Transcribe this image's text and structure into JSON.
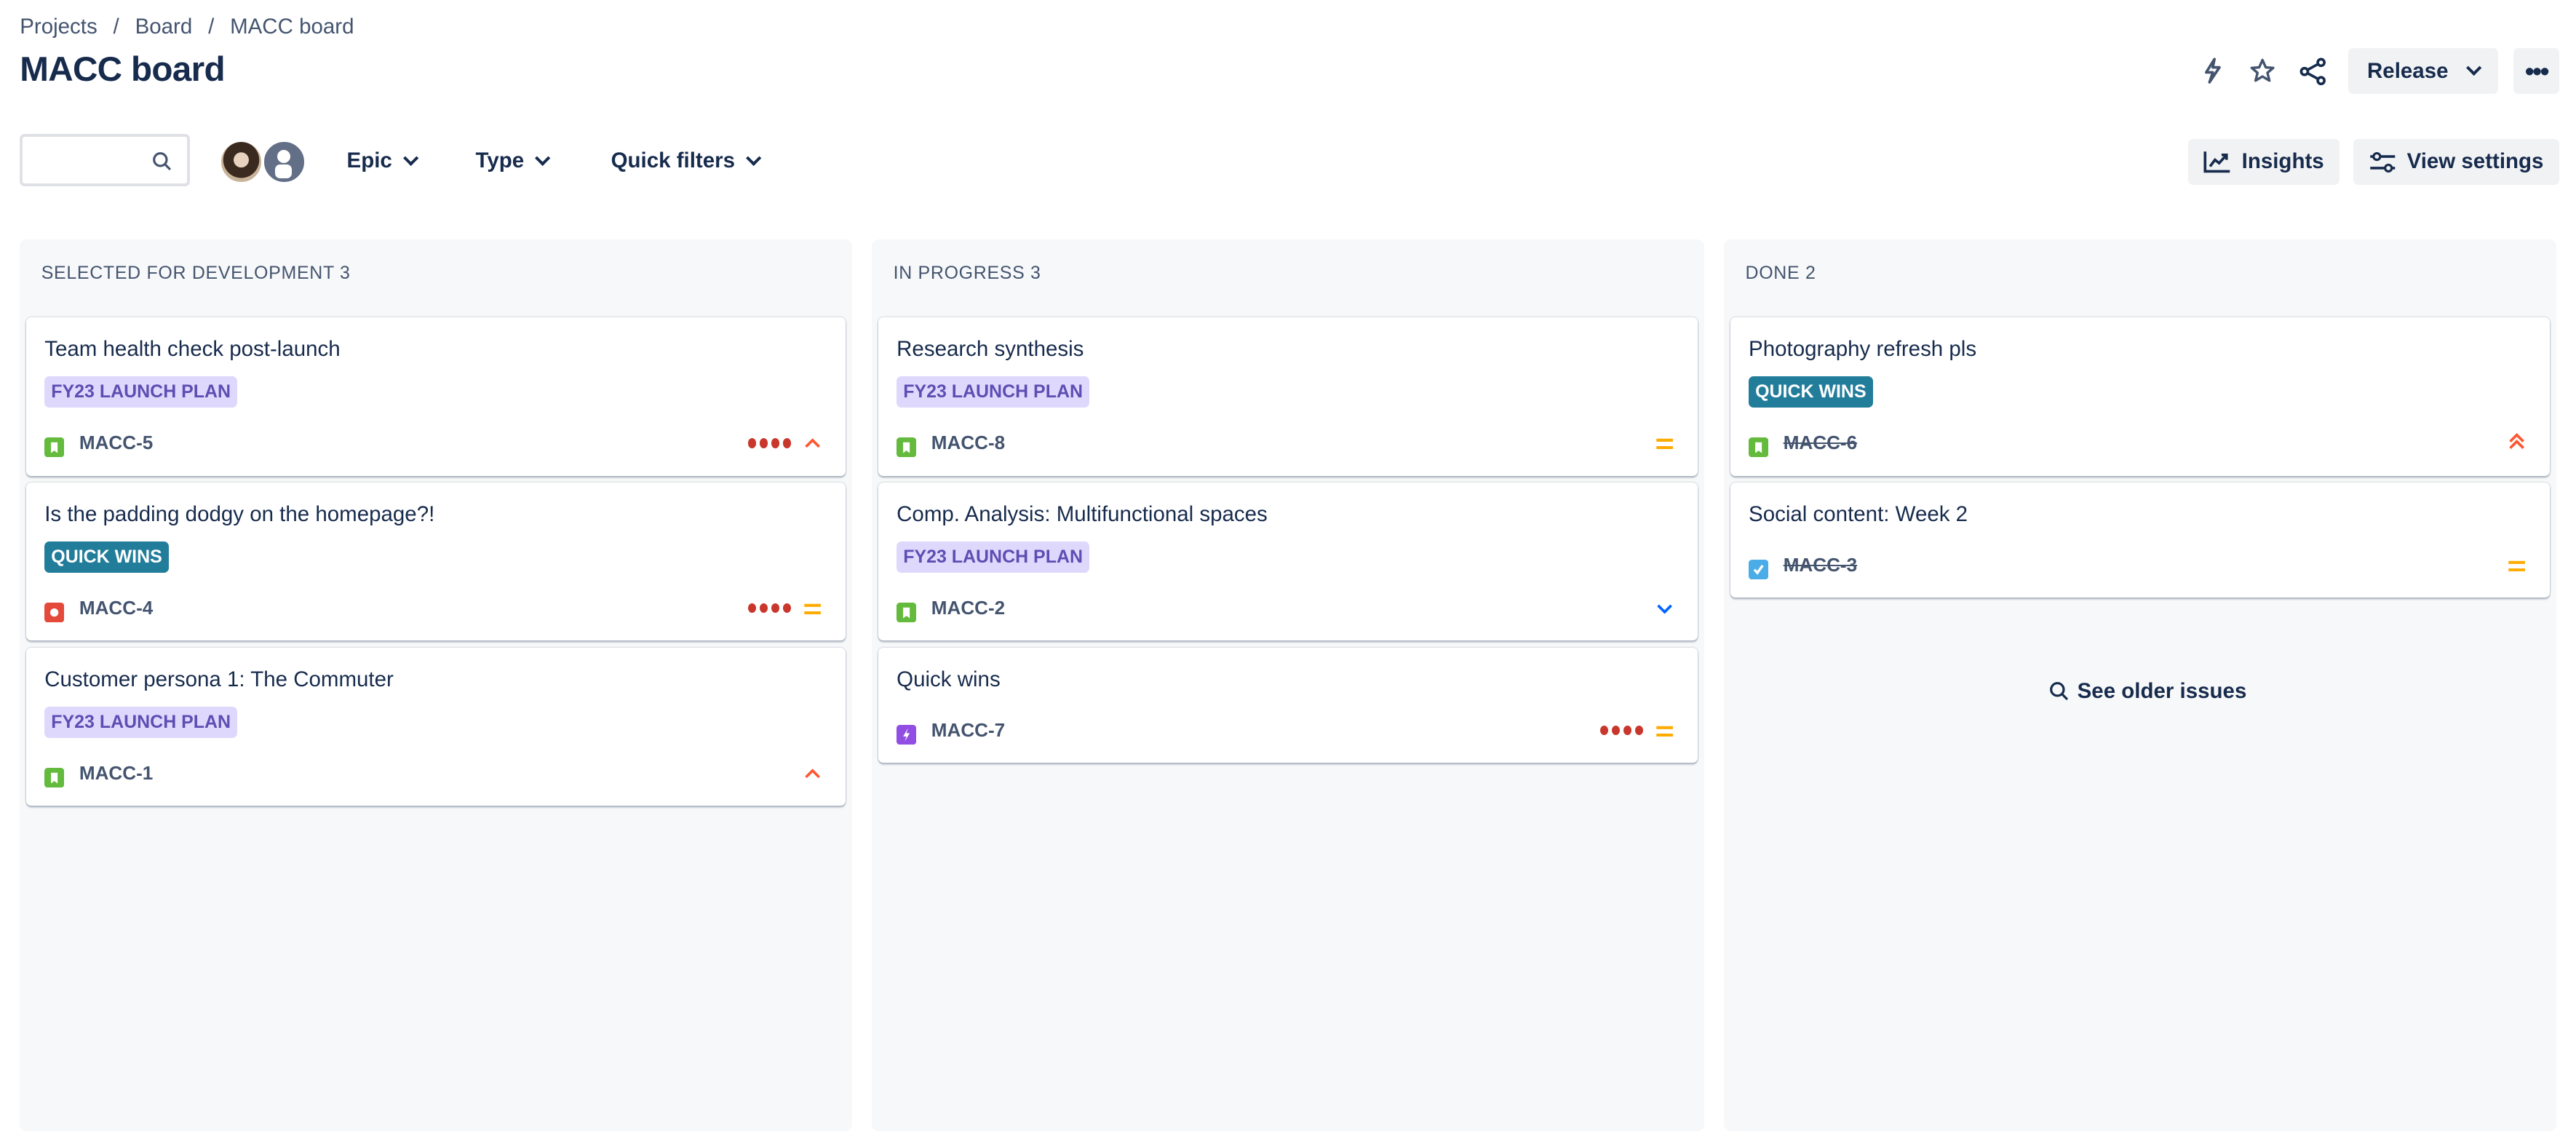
{
  "breadcrumbs": [
    "Projects",
    "Board",
    "MACC board"
  ],
  "breadcrumb_separator": "/",
  "title": "MACC board",
  "header_actions": {
    "automation_icon": "lightning-icon",
    "star_icon": "star-icon",
    "share_icon": "share-icon",
    "release_label": "Release",
    "more_icon": "more-horizontal-icon"
  },
  "toolbar": {
    "search_value": "",
    "search_placeholder": "",
    "filters": [
      "Epic",
      "Type",
      "Quick filters"
    ],
    "insights_label": "Insights",
    "view_settings_label": "View settings"
  },
  "columns": [
    {
      "title": "SELECTED FOR DEVELOPMENT 3",
      "cards": [
        {
          "title": "Team health check post-launch",
          "label": "FY23 LAUNCH PLAN",
          "label_style": "purple",
          "key": "MACC-5",
          "type": "story",
          "done": false,
          "dots": true,
          "priority": "high"
        },
        {
          "title": "Is the padding dodgy on the homepage?!",
          "label": "QUICK WINS",
          "label_style": "teal",
          "key": "MACC-4",
          "type": "bug",
          "done": false,
          "dots": true,
          "priority": "medium"
        },
        {
          "title": "Customer persona 1: The Commuter",
          "label": "FY23 LAUNCH PLAN",
          "label_style": "purple",
          "key": "MACC-1",
          "type": "story",
          "done": false,
          "dots": false,
          "priority": "high"
        }
      ]
    },
    {
      "title": "IN PROGRESS 3",
      "cards": [
        {
          "title": "Research synthesis",
          "label": "FY23 LAUNCH PLAN",
          "label_style": "purple",
          "key": "MACC-8",
          "type": "story",
          "done": false,
          "dots": false,
          "priority": "medium"
        },
        {
          "title": "Comp. Analysis: Multifunctional spaces",
          "label": "FY23 LAUNCH PLAN",
          "label_style": "purple",
          "key": "MACC-2",
          "type": "story",
          "done": false,
          "dots": false,
          "priority": "low"
        },
        {
          "title": "Quick wins",
          "label": "",
          "label_style": "",
          "key": "MACC-7",
          "type": "epic",
          "done": false,
          "dots": true,
          "priority": "medium"
        }
      ]
    },
    {
      "title": "DONE 2",
      "cards": [
        {
          "title": "Photography refresh pls",
          "label": "QUICK WINS",
          "label_style": "teal",
          "key": "MACC-6",
          "type": "story",
          "done": true,
          "dots": false,
          "priority": "highest"
        },
        {
          "title": "Social content: Week 2",
          "label": "",
          "label_style": "",
          "key": "MACC-3",
          "type": "task",
          "done": true,
          "dots": false,
          "priority": "medium"
        }
      ]
    }
  ],
  "see_older_issues": "See older issues",
  "colors": {
    "story": "#63ba3c",
    "bug": "#e5493a",
    "epic": "#904ee2",
    "task": "#4bade8",
    "priority_high": "#ff5630",
    "priority_medium": "#ffab00",
    "priority_low": "#0065ff",
    "dots": "#c9372c"
  }
}
